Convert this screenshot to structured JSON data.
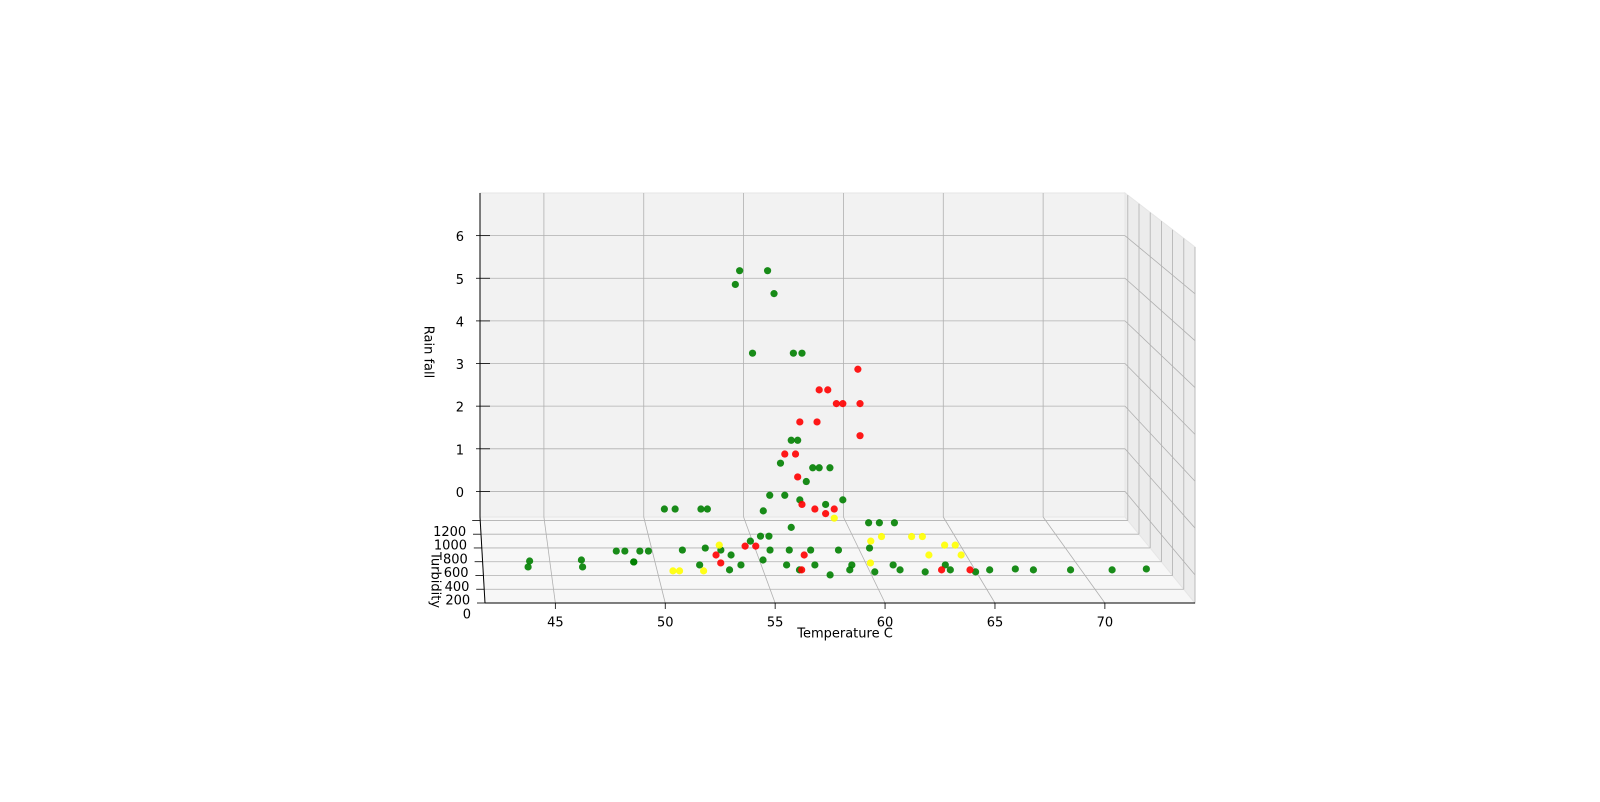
{
  "chart_data": {
    "type": "scatter3d",
    "xlabel": "Temperature C",
    "ylabel": "Turbidity",
    "zlabel": "Rain fall",
    "xlim": [
      41.8,
      74.1
    ],
    "ylim": [
      0,
      1250
    ],
    "zlim": [
      -0.6,
      7.0
    ],
    "xticks": [
      45,
      50,
      55,
      60,
      65,
      70
    ],
    "yticks": [
      0,
      200,
      400,
      600,
      800,
      1000,
      1200
    ],
    "zticks": [
      0,
      1,
      2,
      3,
      4,
      5,
      6
    ],
    "grid": true,
    "series": [
      {
        "color": "#008000",
        "x": [
          53.7,
          55.0,
          53.5,
          55.3,
          54.3,
          56.2,
          56.6,
          56.1,
          56.4,
          55.6,
          57.4,
          57.9,
          56.8,
          57.1,
          55.1,
          55.8,
          50.2,
          50.7,
          51.9,
          52.2,
          56.5,
          57.7,
          58.5,
          54.8,
          56.1,
          59.7,
          60.2,
          60.9,
          54.2,
          43.9,
          43.8,
          46.3,
          46.3,
          48.0,
          48.4,
          48.7,
          48.7,
          49.1,
          49.5,
          51.1,
          52.9,
          53.0,
          54.7,
          56.2,
          58.5,
          60.8,
          63.1,
          64.9,
          66.1,
          66.9,
          68.6,
          70.5,
          72.1,
          55.0,
          55.4,
          56.1,
          57.1,
          55.2,
          58.4,
          57.5,
          59.6,
          61.9,
          64.2,
          51.7,
          53.6,
          55.7,
          57.0,
          58.7,
          60.6,
          63.0,
          52.2,
          53.3,
          59.9
        ],
        "y": [
          300,
          300,
          300,
          300,
          300,
          300,
          300,
          300,
          300,
          300,
          300,
          300,
          300,
          300,
          300,
          300,
          300,
          300,
          300,
          300,
          300,
          300,
          300,
          300,
          300,
          300,
          300,
          300,
          300,
          208,
          119,
          223,
          119,
          357,
          357,
          194,
          194,
          357,
          357,
          372,
          372,
          75,
          223,
          75,
          75,
          75,
          75,
          75,
          89,
          75,
          75,
          75,
          89,
          580,
          580,
          372,
          372,
          372,
          372,
          0,
          45,
          45,
          45,
          149,
          149,
          149,
          149,
          149,
          149,
          149,
          402,
          298,
          402
        ],
        "z": [
          6.2,
          6.2,
          5.9,
          5.7,
          4.4,
          4.4,
          4.4,
          2.5,
          2.5,
          2.0,
          1.9,
          1.9,
          1.6,
          1.9,
          1.3,
          1.3,
          1.0,
          1.0,
          1.0,
          1.0,
          1.2,
          1.1,
          1.2,
          0.96,
          0.6,
          0.7,
          0.7,
          0.7,
          0.3,
          0,
          0,
          0,
          0,
          0,
          0,
          0,
          0,
          0,
          0,
          0,
          0,
          0,
          0,
          0,
          0,
          0,
          0,
          0,
          0,
          0,
          0,
          0,
          0,
          0,
          0,
          0,
          0,
          0,
          0,
          0,
          0,
          0,
          0,
          0,
          0,
          0,
          0,
          0,
          0,
          0,
          0,
          0,
          0
        ]
      },
      {
        "color": "#ff0000",
        "x": [
          59.2,
          57.4,
          57.8,
          58.2,
          59.3,
          58.5,
          59.3,
          56.5,
          57.3,
          55.8,
          56.3,
          56.4,
          56.6,
          57.2,
          57.7,
          58.1,
          54.1,
          54.6,
          52.6,
          52.7,
          56.3,
          62.7,
          64.0,
          56.7
        ],
        "y": [
          300,
          300,
          300,
          300,
          300,
          300,
          300,
          300,
          300,
          300,
          300,
          300,
          300,
          300,
          300,
          300,
          431,
          431,
          298,
          179,
          75,
          75,
          75,
          298
        ],
        "z": [
          4.05,
          3.6,
          3.6,
          3.3,
          3.3,
          3.3,
          2.6,
          2.9,
          2.9,
          2.2,
          2.2,
          1.7,
          1.1,
          1.0,
          0.9,
          1.0,
          0,
          0,
          0,
          0,
          0,
          0,
          0,
          0
        ]
      },
      {
        "color": "#ffff00",
        "x": [
          58.1,
          59.8,
          60.3,
          61.7,
          62.2,
          50.4,
          50.7,
          51.8,
          52.9,
          63.5,
          64.0,
          62.5,
          64.0,
          59.6
        ],
        "y": [
          300,
          300,
          300,
          300,
          300,
          60,
          60,
          60,
          446,
          446,
          446,
          298,
          298,
          179
        ],
        "z": [
          0.8,
          0.3,
          0.4,
          0.4,
          0.4,
          0,
          0,
          0,
          0,
          0,
          0,
          0,
          0,
          0
        ]
      }
    ]
  }
}
